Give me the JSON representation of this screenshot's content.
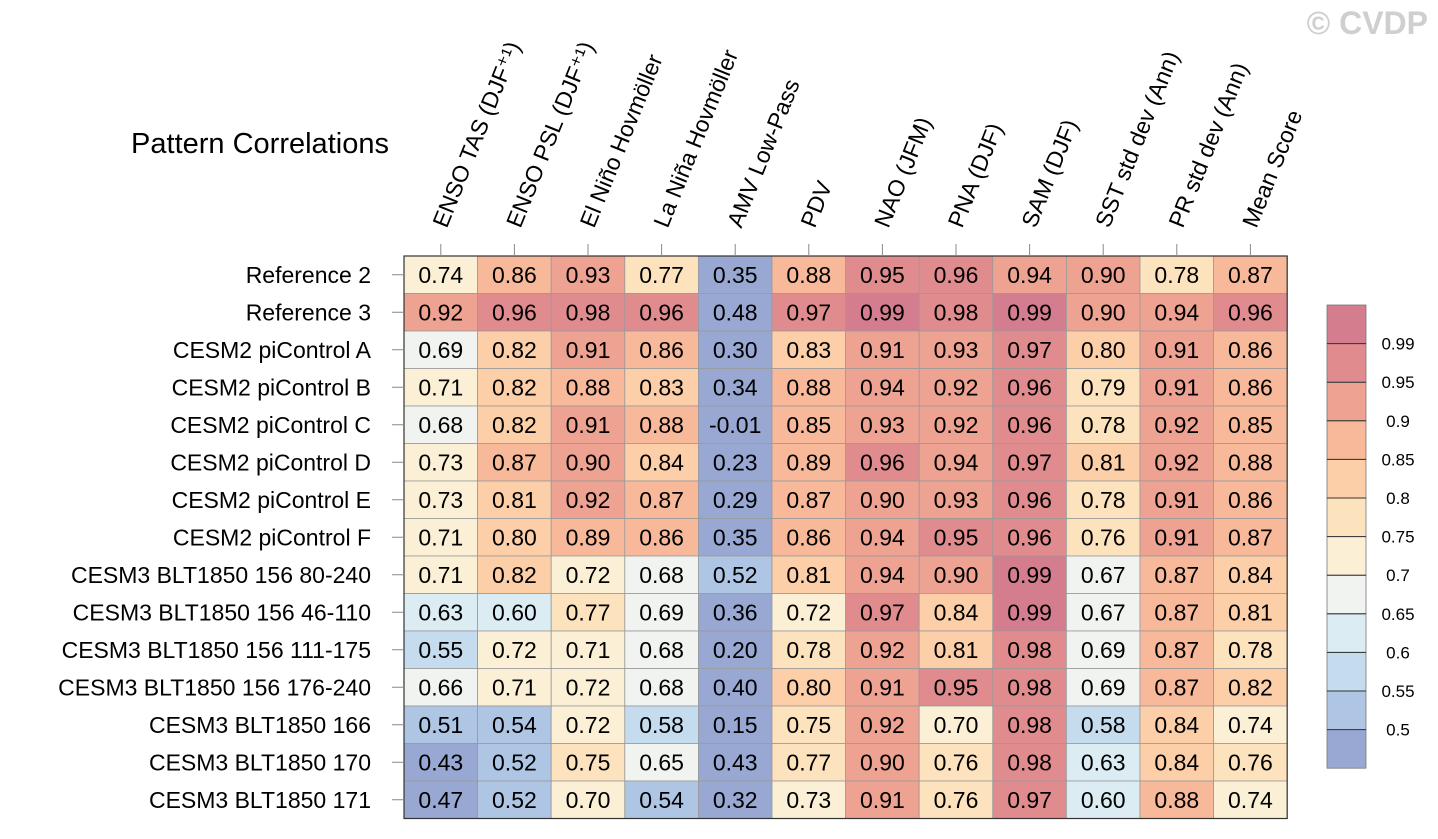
{
  "watermark": "© CVDP",
  "chart_data": {
    "type": "heatmap",
    "title": "Pattern Correlations",
    "columns": [
      "ENSO TAS (DJF⁺¹)",
      "ENSO PSL (DJF⁺¹)",
      "El Niño Hovmöller",
      "La Niña Hovmöller",
      "AMV Low-Pass",
      "PDV",
      "NAO (JFM)",
      "PNA (DJF)",
      "SAM (DJF)",
      "SST std dev (Ann)",
      "PR std dev (Ann)",
      "Mean Score"
    ],
    "rows": [
      "Reference 2",
      "Reference 3",
      "CESM2 piControl A",
      "CESM2 piControl B",
      "CESM2 piControl C",
      "CESM2 piControl D",
      "CESM2 piControl E",
      "CESM2 piControl F",
      "CESM3 BLT1850 156 80-240",
      "CESM3 BLT1850 156 46-110",
      "CESM3 BLT1850 156 111-175",
      "CESM3 BLT1850 156 176-240",
      "CESM3 BLT1850 166",
      "CESM3 BLT1850 170",
      "CESM3 BLT1850 171"
    ],
    "values": [
      [
        "0.74",
        "0.86",
        "0.93",
        "0.77",
        "0.35",
        "0.88",
        "0.95",
        "0.96",
        "0.94",
        "0.90",
        "0.78",
        "0.87"
      ],
      [
        "0.92",
        "0.96",
        "0.98",
        "0.96",
        "0.48",
        "0.97",
        "0.99",
        "0.98",
        "0.99",
        "0.90",
        "0.94",
        "0.96"
      ],
      [
        "0.69",
        "0.82",
        "0.91",
        "0.86",
        "0.30",
        "0.83",
        "0.91",
        "0.93",
        "0.97",
        "0.80",
        "0.91",
        "0.86"
      ],
      [
        "0.71",
        "0.82",
        "0.88",
        "0.83",
        "0.34",
        "0.88",
        "0.94",
        "0.92",
        "0.96",
        "0.79",
        "0.91",
        "0.86"
      ],
      [
        "0.68",
        "0.82",
        "0.91",
        "0.88",
        "-0.01",
        "0.85",
        "0.93",
        "0.92",
        "0.96",
        "0.78",
        "0.92",
        "0.85"
      ],
      [
        "0.73",
        "0.87",
        "0.90",
        "0.84",
        "0.23",
        "0.89",
        "0.96",
        "0.94",
        "0.97",
        "0.81",
        "0.92",
        "0.88"
      ],
      [
        "0.73",
        "0.81",
        "0.92",
        "0.87",
        "0.29",
        "0.87",
        "0.90",
        "0.93",
        "0.96",
        "0.78",
        "0.91",
        "0.86"
      ],
      [
        "0.71",
        "0.80",
        "0.89",
        "0.86",
        "0.35",
        "0.86",
        "0.94",
        "0.95",
        "0.96",
        "0.76",
        "0.91",
        "0.87"
      ],
      [
        "0.71",
        "0.82",
        "0.72",
        "0.68",
        "0.52",
        "0.81",
        "0.94",
        "0.90",
        "0.99",
        "0.67",
        "0.87",
        "0.84"
      ],
      [
        "0.63",
        "0.60",
        "0.77",
        "0.69",
        "0.36",
        "0.72",
        "0.97",
        "0.84",
        "0.99",
        "0.67",
        "0.87",
        "0.81"
      ],
      [
        "0.55",
        "0.72",
        "0.71",
        "0.68",
        "0.20",
        "0.78",
        "0.92",
        "0.81",
        "0.98",
        "0.69",
        "0.87",
        "0.78"
      ],
      [
        "0.66",
        "0.71",
        "0.72",
        "0.68",
        "0.40",
        "0.80",
        "0.91",
        "0.95",
        "0.98",
        "0.69",
        "0.87",
        "0.82"
      ],
      [
        "0.51",
        "0.54",
        "0.72",
        "0.58",
        "0.15",
        "0.75",
        "0.92",
        "0.70",
        "0.98",
        "0.58",
        "0.84",
        "0.74"
      ],
      [
        "0.43",
        "0.52",
        "0.75",
        "0.65",
        "0.43",
        "0.77",
        "0.90",
        "0.76",
        "0.98",
        "0.63",
        "0.84",
        "0.76"
      ],
      [
        "0.47",
        "0.52",
        "0.70",
        "0.54",
        "0.32",
        "0.73",
        "0.91",
        "0.76",
        "0.97",
        "0.60",
        "0.88",
        "0.74"
      ]
    ],
    "colorbar": {
      "labels": [
        "0.99",
        "0.95",
        "0.9",
        "0.85",
        "0.8",
        "0.75",
        "0.7",
        "0.65",
        "0.6",
        "0.55",
        "0.5"
      ],
      "levels": [
        0.5,
        0.55,
        0.6,
        0.65,
        0.7,
        0.75,
        0.8,
        0.85,
        0.9,
        0.95,
        0.99
      ],
      "colors": [
        "#98a8d2",
        "#aec5e3",
        "#c4dced",
        "#dbecf3",
        "#f0f3ef",
        "#fbf0d5",
        "#fde2be",
        "#fccfa9",
        "#f8b99a",
        "#eea291",
        "#e08c8e",
        "#d47d8e"
      ]
    }
  }
}
